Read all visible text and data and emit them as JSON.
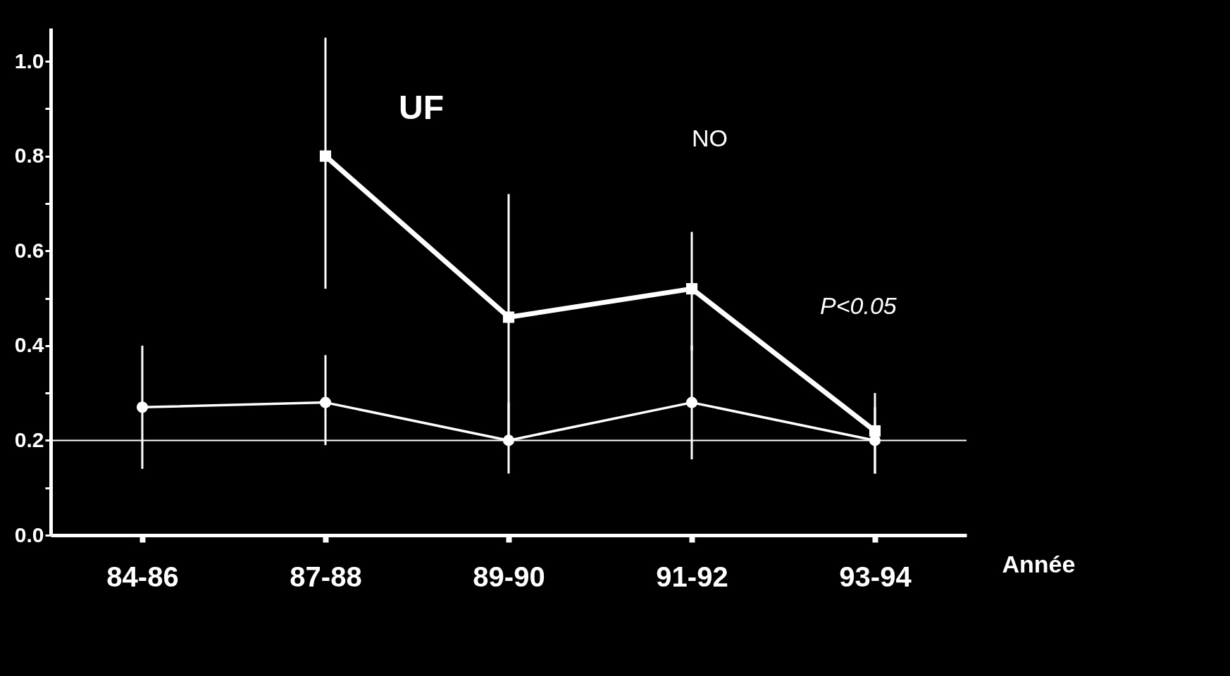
{
  "chart_data": {
    "type": "line",
    "xlabel": "Année",
    "categories": [
      "84-86",
      "87-88",
      "89-90",
      "91-92",
      "93-94"
    ],
    "series": [
      {
        "color": "#ffffff",
        "marker": "square",
        "values": [
          null,
          0.8,
          0.46,
          0.52,
          0.22
        ],
        "errors": [
          null,
          [
            0.52,
            1.05
          ],
          [
            0.19,
            0.72
          ],
          [
            0.39,
            0.64
          ],
          [
            0.13,
            0.3
          ]
        ]
      },
      {
        "color": "#ffffff",
        "marker": "circle",
        "values": [
          0.27,
          0.28,
          0.2,
          0.28,
          0.2
        ],
        "errors": [
          [
            0.14,
            0.4
          ],
          [
            0.19,
            0.38
          ],
          [
            0.13,
            0.28
          ],
          [
            0.16,
            0.4
          ],
          [
            0.13,
            0.27
          ]
        ]
      }
    ],
    "ylim": [
      0,
      1.07
    ],
    "yticks": [
      {
        "value": 0,
        "label": "0.0"
      },
      {
        "value": 0.1,
        "label": null
      },
      0.2,
      {
        "value": 0.3,
        "label": null
      },
      0.4,
      {
        "value": 0.5,
        "label": null
      },
      0.6,
      {
        "value": 0.7,
        "label": null
      },
      0.8,
      {
        "value": 0.9,
        "label": null
      },
      {
        "value": 1,
        "label": "1.0"
      }
    ],
    "ref_lines": [
      {
        "axis": "y",
        "value": 0.2,
        "color": "#ffffff"
      }
    ],
    "annotations": [
      "UF",
      "NO",
      "P<0.05"
    ],
    "grid": false
  }
}
